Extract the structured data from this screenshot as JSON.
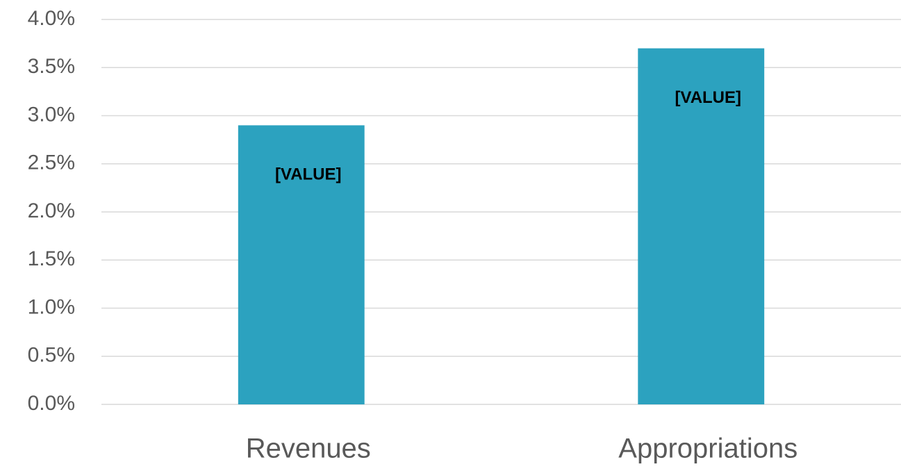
{
  "chart_data": {
    "type": "bar",
    "categories": [
      "Revenues",
      "Appropriations"
    ],
    "values": [
      2.9,
      3.7
    ],
    "value_labels": [
      "[VALUE]",
      "[VALUE]"
    ],
    "color": "#2ca2bf",
    "ylim": [
      0,
      4
    ],
    "yticks": [
      {
        "value": 0,
        "label": "0.0%"
      },
      {
        "value": 0.5,
        "label": "0.5%"
      },
      {
        "value": 1,
        "label": "1.0%"
      },
      {
        "value": 1.5,
        "label": "1.5%"
      },
      {
        "value": 2,
        "label": "2.0%"
      },
      {
        "value": 2.5,
        "label": "2.5%"
      },
      {
        "value": 3,
        "label": "3.0%"
      },
      {
        "value": 3.5,
        "label": "3.5%"
      },
      {
        "value": 4,
        "label": "4.0%"
      }
    ],
    "grid": true
  }
}
